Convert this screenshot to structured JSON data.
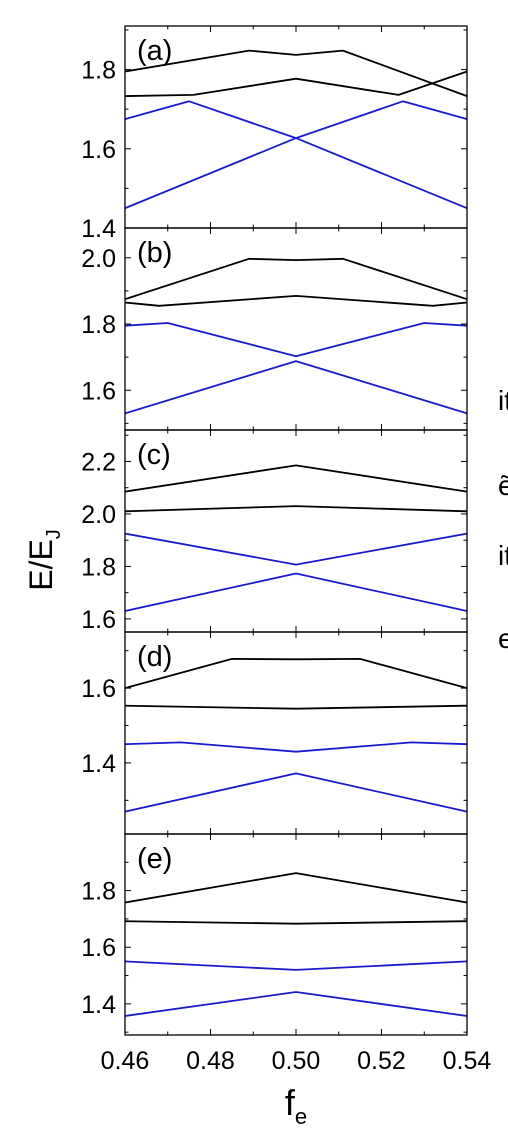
{
  "figure": {
    "ylabel_main": "E/E",
    "ylabel_sub": "J",
    "xlabel_main": "f",
    "xlabel_sub": "e",
    "right_edge_glyphs": [
      "it",
      "ẽ",
      "it",
      "e"
    ]
  },
  "colors": {
    "upper": "#000000",
    "lower": "#1a1acc"
  },
  "chart_data": [
    {
      "type": "line",
      "label": "(a)",
      "xlim": [
        0.46,
        0.54
      ],
      "ylim": [
        1.4,
        1.91
      ],
      "yticks": [
        1.4,
        1.6,
        1.8
      ],
      "yticklabels": [
        "1.4",
        "1.6",
        "1.8"
      ],
      "xticks": [
        0.46,
        0.48,
        0.5,
        0.52,
        0.54
      ],
      "series": [
        {
          "color": "upper",
          "x": [
            0.46,
            0.489,
            0.5,
            0.511,
            0.54
          ],
          "y": [
            1.795,
            1.848,
            1.837,
            1.848,
            1.733
          ]
        },
        {
          "color": "upper",
          "x": [
            0.46,
            0.476,
            0.5,
            0.524,
            0.54
          ],
          "y": [
            1.733,
            1.736,
            1.777,
            1.736,
            1.795
          ]
        },
        {
          "color": "lower",
          "x": [
            0.46,
            0.475,
            0.5,
            0.54
          ],
          "y": [
            1.675,
            1.72,
            1.627,
            1.45
          ]
        },
        {
          "color": "lower",
          "x": [
            0.46,
            0.5,
            0.525,
            0.54
          ],
          "y": [
            1.45,
            1.627,
            1.72,
            1.675
          ]
        }
      ]
    },
    {
      "type": "line",
      "label": "(b)",
      "xlim": [
        0.46,
        0.54
      ],
      "ylim": [
        1.48,
        2.09
      ],
      "yticks": [
        1.6,
        1.8,
        2.0
      ],
      "yticklabels": [
        "1.6",
        "1.8",
        "2.0"
      ],
      "xticks": [
        0.46,
        0.48,
        0.5,
        0.52,
        0.54
      ],
      "series": [
        {
          "color": "upper",
          "x": [
            0.46,
            0.489,
            0.5,
            0.511,
            0.54
          ],
          "y": [
            1.875,
            1.997,
            1.993,
            1.997,
            1.875
          ]
        },
        {
          "color": "upper",
          "x": [
            0.46,
            0.468,
            0.5,
            0.532,
            0.54
          ],
          "y": [
            1.865,
            1.855,
            1.885,
            1.855,
            1.865
          ]
        },
        {
          "color": "lower",
          "x": [
            0.46,
            0.47,
            0.5,
            0.53,
            0.54
          ],
          "y": [
            1.795,
            1.803,
            1.703,
            1.803,
            1.795
          ]
        },
        {
          "color": "lower",
          "x": [
            0.46,
            0.5,
            0.54
          ],
          "y": [
            1.53,
            1.688,
            1.53
          ]
        }
      ]
    },
    {
      "type": "line",
      "label": "(c)",
      "xlim": [
        0.46,
        0.54
      ],
      "ylim": [
        1.55,
        2.32
      ],
      "yticks": [
        1.6,
        1.8,
        2.0,
        2.2
      ],
      "yticklabels": [
        "1.6",
        "1.8",
        "2.0",
        "2.2"
      ],
      "xticks": [
        0.46,
        0.48,
        0.5,
        0.52,
        0.54
      ],
      "series": [
        {
          "color": "upper",
          "x": [
            0.46,
            0.5,
            0.54
          ],
          "y": [
            2.085,
            2.185,
            2.085
          ]
        },
        {
          "color": "upper",
          "x": [
            0.46,
            0.5,
            0.54
          ],
          "y": [
            2.01,
            2.03,
            2.01
          ]
        },
        {
          "color": "lower",
          "x": [
            0.46,
            0.5,
            0.54
          ],
          "y": [
            1.925,
            1.807,
            1.925
          ]
        },
        {
          "color": "lower",
          "x": [
            0.46,
            0.5,
            0.54
          ],
          "y": [
            1.63,
            1.773,
            1.63
          ]
        }
      ]
    },
    {
      "type": "line",
      "label": "(d)",
      "xlim": [
        0.46,
        0.54
      ],
      "ylim": [
        1.21,
        1.75
      ],
      "yticks": [
        1.4,
        1.6
      ],
      "yticklabels": [
        "1.4",
        "1.6"
      ],
      "xticks": [
        0.46,
        0.48,
        0.5,
        0.52,
        0.54
      ],
      "series": [
        {
          "color": "upper",
          "x": [
            0.46,
            0.485,
            0.5,
            0.515,
            0.54
          ],
          "y": [
            1.6,
            1.678,
            1.677,
            1.678,
            1.6
          ]
        },
        {
          "color": "upper",
          "x": [
            0.46,
            0.5,
            0.54
          ],
          "y": [
            1.553,
            1.545,
            1.553
          ]
        },
        {
          "color": "lower",
          "x": [
            0.46,
            0.473,
            0.5,
            0.527,
            0.54
          ],
          "y": [
            1.45,
            1.455,
            1.43,
            1.455,
            1.45
          ]
        },
        {
          "color": "lower",
          "x": [
            0.46,
            0.5,
            0.54
          ],
          "y": [
            1.27,
            1.372,
            1.27
          ]
        }
      ]
    },
    {
      "type": "line",
      "label": "(e)",
      "xlim": [
        0.46,
        0.54
      ],
      "ylim": [
        1.29,
        2.0
      ],
      "yticks": [
        1.4,
        1.6,
        1.8
      ],
      "yticklabels": [
        "1.4",
        "1.6",
        "1.8"
      ],
      "xticks": [
        0.46,
        0.48,
        0.5,
        0.52,
        0.54
      ],
      "xticklabels": [
        "0.46",
        "0.48",
        "0.50",
        "0.52",
        "0.54"
      ],
      "series": [
        {
          "color": "upper",
          "x": [
            0.46,
            0.5,
            0.54
          ],
          "y": [
            1.758,
            1.862,
            1.758
          ]
        },
        {
          "color": "upper",
          "x": [
            0.46,
            0.5,
            0.54
          ],
          "y": [
            1.692,
            1.683,
            1.692
          ]
        },
        {
          "color": "lower",
          "x": [
            0.46,
            0.5,
            0.54
          ],
          "y": [
            1.55,
            1.52,
            1.55
          ]
        },
        {
          "color": "lower",
          "x": [
            0.46,
            0.5,
            0.54
          ],
          "y": [
            1.357,
            1.442,
            1.357
          ]
        }
      ]
    }
  ]
}
